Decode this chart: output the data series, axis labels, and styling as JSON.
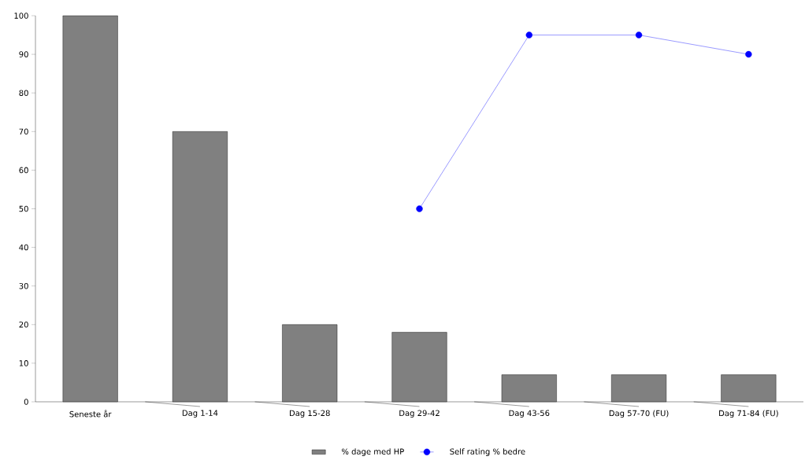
{
  "chart_data": {
    "type": "bar",
    "categories": [
      "Seneste år",
      "Dag 1-14",
      "Dag 15-28",
      "Dag 29-42",
      "Dag 43-56",
      "Dag 57-70 (FU)",
      "Dag 71-84 (FU)"
    ],
    "series": [
      {
        "name": "% dage med HP",
        "color": "#808080",
        "values": [
          100,
          70,
          20,
          18,
          7,
          7,
          7
        ]
      },
      {
        "name": "Self rating % bedre",
        "type": "line",
        "color": "#0000ff",
        "marker": "circle",
        "values": [
          null,
          null,
          null,
          50,
          95,
          95,
          90
        ]
      }
    ],
    "ylim": [
      0,
      100
    ],
    "yticks": [
      0,
      10,
      20,
      30,
      40,
      50,
      60,
      70,
      80,
      90,
      100
    ],
    "legend": "bottom"
  }
}
